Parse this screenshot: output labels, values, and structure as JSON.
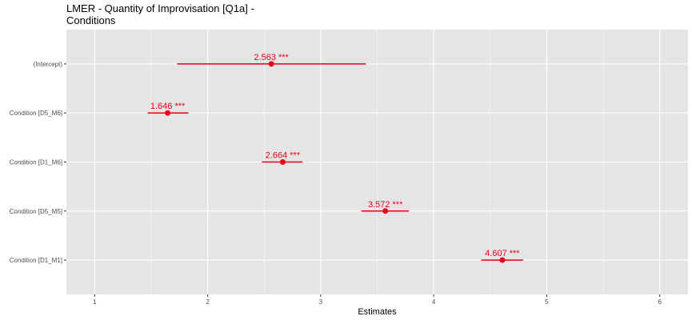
{
  "chart_data": {
    "type": "scatter",
    "subtype": "forest-plot",
    "title": "LMER - Quantity of Improvisation [Q1a] -\nConditions",
    "xlabel": "Estimates",
    "ylabel": "",
    "xlim": [
      0.75,
      6.25
    ],
    "xticks": [
      1,
      2,
      3,
      4,
      5,
      6
    ],
    "grid": true,
    "legend": "none",
    "point_color": "#e8001c",
    "panel_color": "#e5e5e5",
    "grid_color": "#ffffff",
    "terms": [
      {
        "label": "(Intercept)",
        "estimate": 2.563,
        "ci_low": 1.73,
        "ci_high": 3.4,
        "annotation": "2.563 ***"
      },
      {
        "label": "Condition [D5_M6]",
        "estimate": 1.646,
        "ci_low": 1.47,
        "ci_high": 1.83,
        "annotation": "1.646 ***"
      },
      {
        "label": "Condition [D1_M6]",
        "estimate": 2.664,
        "ci_low": 2.48,
        "ci_high": 2.84,
        "annotation": "2.664 ***"
      },
      {
        "label": "Condition [D5_M5]",
        "estimate": 3.572,
        "ci_low": 3.36,
        "ci_high": 3.78,
        "annotation": "3.572 ***"
      },
      {
        "label": "Condition [D1_M1]",
        "estimate": 4.607,
        "ci_low": 4.42,
        "ci_high": 4.79,
        "annotation": "4.607 ***"
      }
    ]
  }
}
